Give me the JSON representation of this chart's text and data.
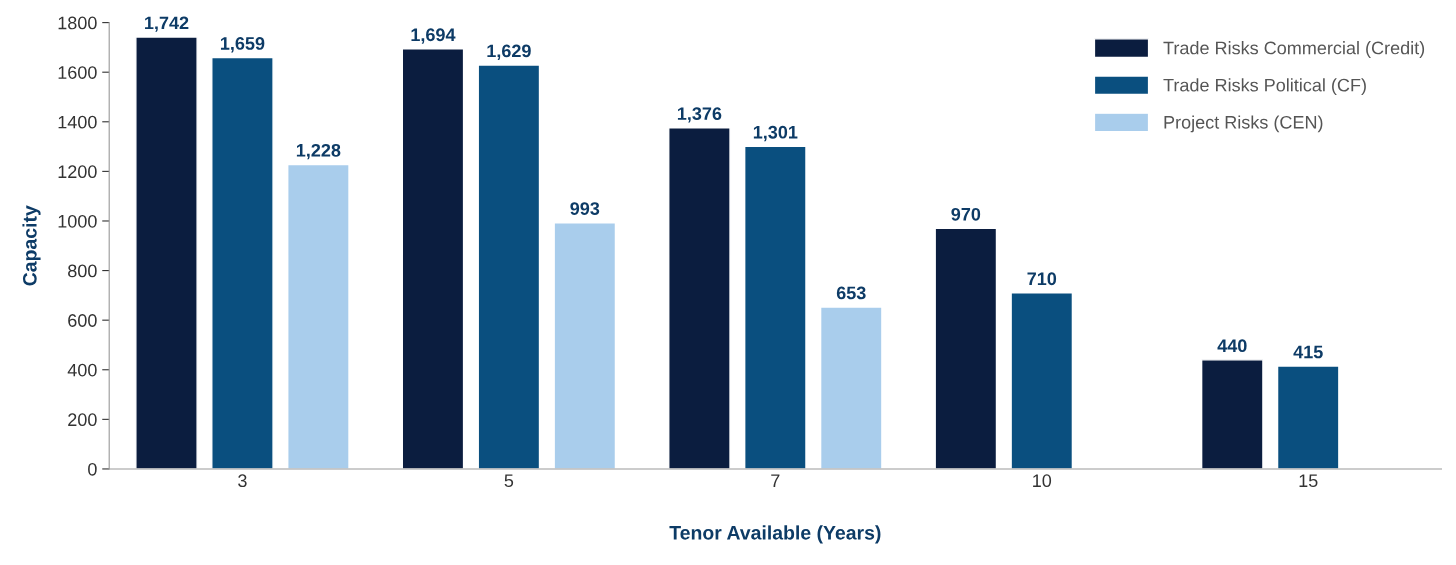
{
  "chart_data": {
    "type": "bar",
    "xlabel": "Tenor Available (Years)",
    "ylabel": "Capacity",
    "categories": [
      "3",
      "5",
      "7",
      "10",
      "15"
    ],
    "series": [
      {
        "name": "Trade Risks Commercial (Credit)",
        "color": "#0b1d3f",
        "values": [
          1742,
          1694,
          1376,
          970,
          440
        ],
        "value_labels": [
          "1,742",
          "1,694",
          "1,376",
          "970",
          "440"
        ]
      },
      {
        "name": "Trade Risks Political (CF)",
        "color": "#0a4f7f",
        "values": [
          1659,
          1629,
          1301,
          710,
          415
        ],
        "value_labels": [
          "1,659",
          "1,629",
          "1,301",
          "710",
          "415"
        ]
      },
      {
        "name": "Project Risks (CEN)",
        "color": "#a9cdec",
        "values": [
          1228,
          993,
          653,
          null,
          null
        ],
        "value_labels": [
          "1,228",
          "993",
          "653",
          null,
          null
        ]
      }
    ],
    "ylim": [
      0,
      1800
    ],
    "yticks": [
      0,
      200,
      400,
      600,
      800,
      1000,
      1200,
      1400,
      1600,
      1800
    ],
    "legend": "top right"
  }
}
